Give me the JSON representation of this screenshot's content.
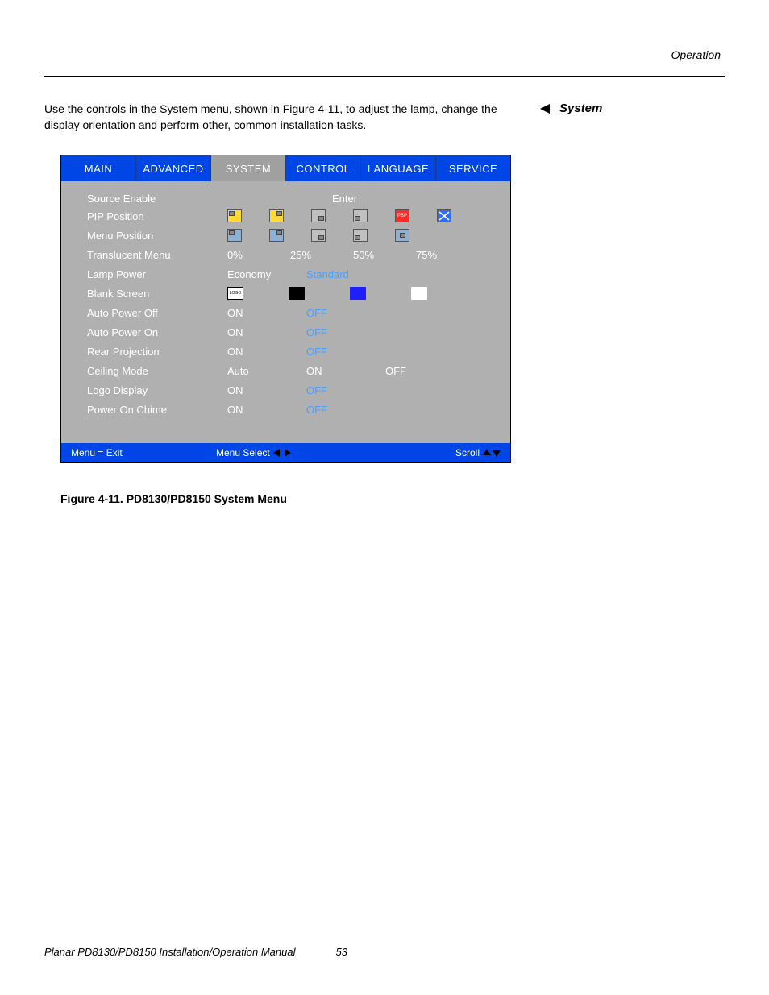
{
  "page": {
    "section_header": "Operation",
    "body_paragraph": "Use the controls in the System menu, shown in Figure 4-11, to adjust the lamp, change the display orientation and perform other, common installation tasks.",
    "side_heading": "System",
    "footer_title": "Planar PD8130/PD8150 Installation/Operation Manual",
    "footer_page": "53",
    "figure_caption": "Figure 4-11. PD8130/PD8150 System Menu"
  },
  "colors": {
    "tab_bg": "#0046e6",
    "tab_active_bg": "#a0a0a0",
    "panel_bg": "#b0b0b0",
    "highlight_text": "#4aa0ff",
    "icon_yellow": "#ffd83a",
    "icon_red": "#ff2a2a",
    "icon_blue": "#2d6cff",
    "blank_black": "#000000",
    "blank_blue": "#2020ff",
    "blank_white": "#ffffff",
    "menu_icon_bg": "#8fb0d0"
  },
  "menu": {
    "tabs": [
      {
        "label": "MAIN",
        "active": false
      },
      {
        "label": "ADVANCED",
        "active": false
      },
      {
        "label": "SYSTEM",
        "active": true
      },
      {
        "label": "CONTROL",
        "active": false
      },
      {
        "label": "LANGUAGE",
        "active": false
      },
      {
        "label": "SERVICE",
        "active": false
      }
    ],
    "source_enable": {
      "label": "Source Enable",
      "value": "Enter"
    },
    "pip_position": {
      "label": "PIP Position",
      "icons": [
        {
          "bg_key": "icon_yellow",
          "corner": "tl"
        },
        {
          "bg_key": "icon_yellow",
          "corner": "tr"
        },
        {
          "bg_key": null,
          "corner": "br"
        },
        {
          "bg_key": null,
          "corner": "bl"
        },
        {
          "bg_key": "icon_red",
          "corner": "text",
          "text": "PBP"
        },
        {
          "bg_key": "icon_blue",
          "corner": "center",
          "mark": "x"
        }
      ]
    },
    "menu_position": {
      "label": "Menu Position",
      "icons": [
        {
          "bg_key": "menu_icon_bg",
          "corner": "tl"
        },
        {
          "bg_key": "menu_icon_bg",
          "corner": "tr"
        },
        {
          "bg_key": null,
          "corner": "br"
        },
        {
          "bg_key": null,
          "corner": "bl"
        },
        {
          "bg_key": "menu_icon_bg",
          "corner": "center"
        }
      ]
    },
    "translucent": {
      "label": "Translucent Menu",
      "values": [
        "0%",
        "25%",
        "50%",
        "75%"
      ]
    },
    "lamp_power": {
      "label": "Lamp Power",
      "values": [
        "Economy",
        "Standard"
      ],
      "highlight_idx": 1
    },
    "blank_screen": {
      "label": "Blank Screen",
      "boxes": [
        {
          "type": "logo",
          "text": "LOGO"
        },
        {
          "type": "color",
          "color_key": "blank_black"
        },
        {
          "type": "color",
          "color_key": "blank_blue"
        },
        {
          "type": "color",
          "color_key": "blank_white"
        }
      ]
    },
    "auto_power_off": {
      "label": "Auto Power Off",
      "values": [
        "ON",
        "OFF"
      ],
      "highlight_idx": 1
    },
    "auto_power_on": {
      "label": "Auto Power On",
      "values": [
        "ON",
        "OFF"
      ],
      "highlight_idx": 1
    },
    "rear_projection": {
      "label": "Rear Projection",
      "values": [
        "ON",
        "OFF"
      ],
      "highlight_idx": 1
    },
    "ceiling_mode": {
      "label": "Ceiling Mode",
      "values": [
        "Auto",
        "ON",
        "OFF"
      ]
    },
    "logo_display": {
      "label": "Logo Display",
      "values": [
        "ON",
        "OFF"
      ],
      "highlight_idx": 1
    },
    "power_on_chime": {
      "label": "Power On Chime",
      "values": [
        "ON",
        "OFF"
      ],
      "highlight_idx": 1
    },
    "status": {
      "exit": "Menu = Exit",
      "select": "Menu Select",
      "scroll": "Scroll"
    }
  }
}
